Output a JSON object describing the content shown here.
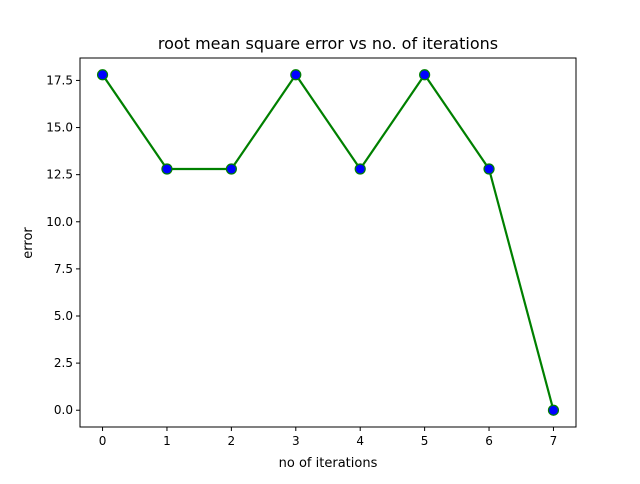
{
  "chart_data": {
    "type": "line",
    "title": "root mean square error vs no. of iterations",
    "xlabel": "no of iterations",
    "ylabel": "error",
    "x": [
      0,
      1,
      2,
      3,
      4,
      5,
      6,
      7
    ],
    "series": [
      {
        "values": [
          17.8,
          12.8,
          12.8,
          17.8,
          12.8,
          17.8,
          12.8,
          0.0
        ],
        "line_color": "#008000",
        "marker_face_color": "#0000ff",
        "marker_edge_color": "#008000",
        "marker": "circle"
      }
    ],
    "xticks": [
      "0",
      "1",
      "2",
      "3",
      "4",
      "5",
      "6",
      "7"
    ],
    "yticks": [
      "0.0",
      "2.5",
      "5.0",
      "7.5",
      "10.0",
      "12.5",
      "15.0",
      "17.5"
    ],
    "xlim": [
      -0.35,
      7.35
    ],
    "ylim": [
      -0.89,
      18.69
    ],
    "grid": false
  }
}
